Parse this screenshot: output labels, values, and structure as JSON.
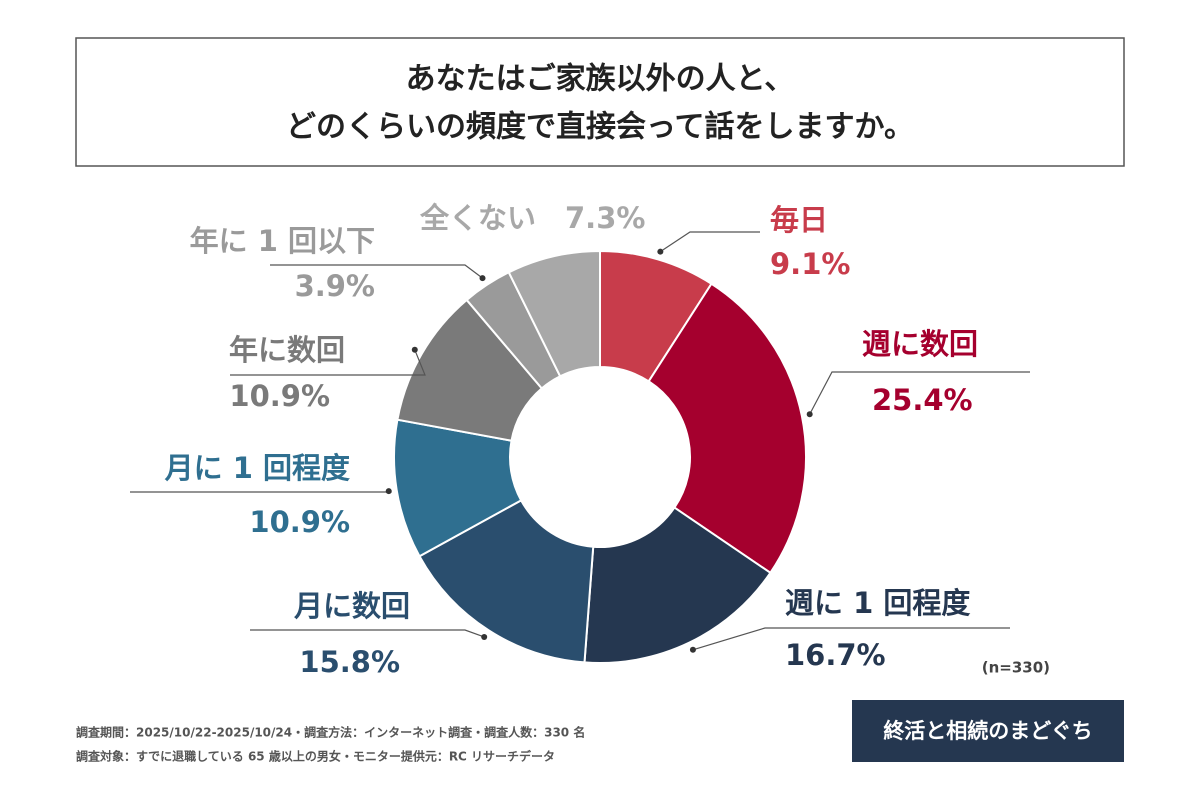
{
  "chart_data": {
    "type": "donut",
    "title": [
      "あなたはご家族以外の人と、",
      "どのくらいの頻度で直接会って話をしますか。"
    ],
    "categories": [
      "毎日",
      "週に数回",
      "週に 1 回程度",
      "月に数回",
      "月に 1 回程度",
      "年に数回",
      "年に 1 回以下",
      "全くない"
    ],
    "values": [
      9.1,
      25.4,
      16.7,
      15.8,
      10.9,
      10.9,
      3.9,
      7.3
    ],
    "value_labels": [
      "9.1%",
      "25.4%",
      "16.7%",
      "15.8%",
      "10.9%",
      "10.9%",
      "3.9%",
      "7.3%"
    ],
    "colors": [
      "#c83c4b",
      "#a5002e",
      "#253750",
      "#2a4e6e",
      "#2f6f90",
      "#7a7a7a",
      "#9a9a9a",
      "#a8a8a8"
    ],
    "note": "(n=330)",
    "footnotes": [
      "調査期間：2025/10/22-2025/10/24・調査方法：インターネット調査・調査人数：330 名",
      "調査対象：すでに退職している 65 歳以上の男女・モニター提供元：RC リサーチデータ"
    ],
    "brand": "終活と相続のまどぐち"
  }
}
